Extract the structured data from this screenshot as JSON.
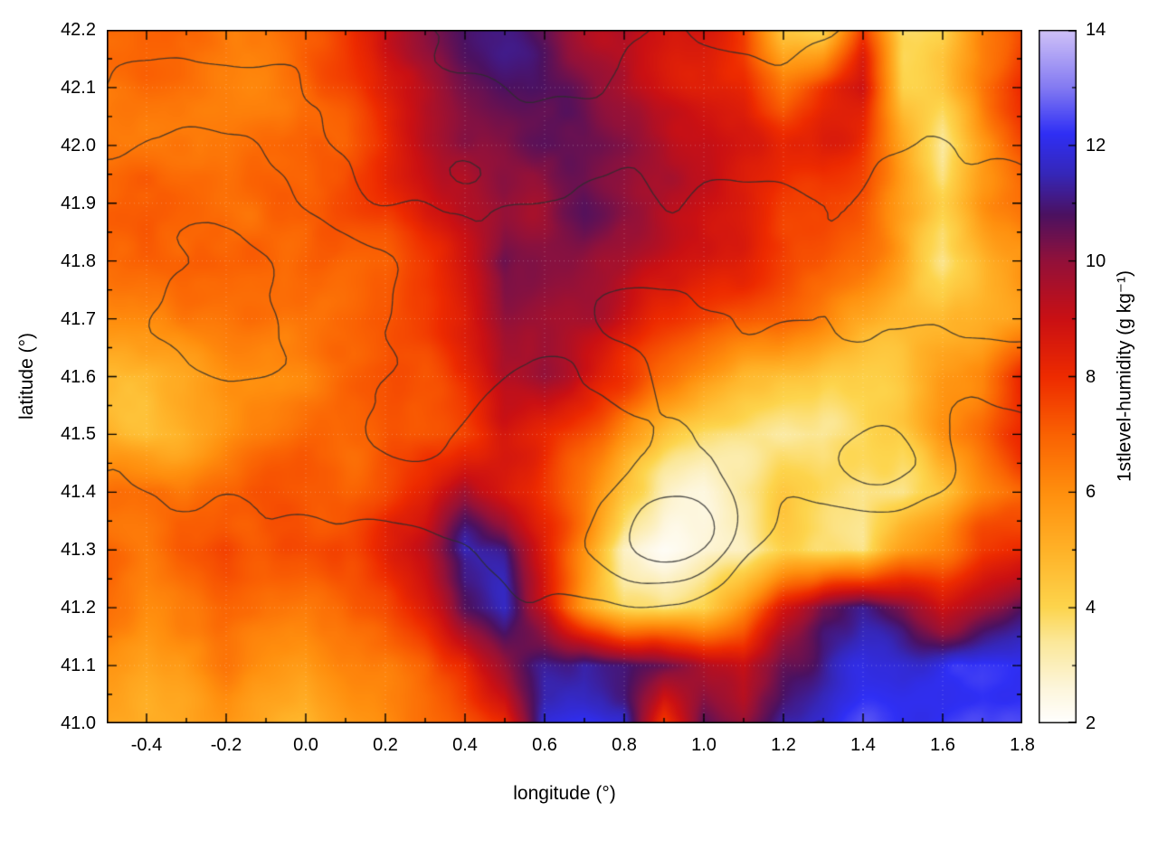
{
  "figure": {
    "background": "#ffffff"
  },
  "chart_data": {
    "type": "heatmap",
    "title": "",
    "xlabel": "longitude (°)",
    "ylabel": "latitude (°)",
    "cblabel": "1stlevel-humidity (g kg⁻¹)",
    "x_range": [
      -0.5,
      1.8
    ],
    "y_range": [
      41.0,
      42.2
    ],
    "c_range": [
      2,
      14
    ],
    "grid_on": true,
    "legend_position": "colorbar-right",
    "x_tick_values": [
      -0.4,
      -0.2,
      0.0,
      0.2,
      0.4,
      0.6,
      0.8,
      1.0,
      1.2,
      1.4,
      1.6,
      1.8
    ],
    "x_tick_labels": [
      "-0.4",
      "-0.2",
      "0.0",
      "0.2",
      "0.4",
      "0.6",
      "0.8",
      "1.0",
      "1.2",
      "1.4",
      "1.6",
      "1.8"
    ],
    "y_tick_values": [
      41.0,
      41.1,
      41.2,
      41.3,
      41.4,
      41.5,
      41.6,
      41.7,
      41.8,
      41.9,
      42.0,
      42.1,
      42.2
    ],
    "y_tick_labels": [
      "41.0",
      "41.1",
      "41.2",
      "41.3",
      "41.4",
      "41.5",
      "41.6",
      "41.7",
      "41.8",
      "41.9",
      "42.0",
      "42.1",
      "42.2"
    ],
    "cb_tick_values": [
      2,
      4,
      6,
      8,
      10,
      12,
      14
    ],
    "cb_tick_labels": [
      "2",
      "4",
      "6",
      "8",
      "10",
      "12",
      "14"
    ],
    "grid_lon": [
      -0.5,
      -0.4,
      -0.3,
      -0.2,
      -0.1,
      0.0,
      0.1,
      0.2,
      0.3,
      0.4,
      0.5,
      0.6,
      0.7,
      0.8,
      0.9,
      1.0,
      1.1,
      1.2,
      1.3,
      1.4,
      1.5,
      1.6,
      1.7,
      1.8
    ],
    "grid_lat": [
      42.2,
      42.1,
      42.0,
      41.9,
      41.8,
      41.7,
      41.6,
      41.5,
      41.4,
      41.3,
      41.2,
      41.1,
      41.0
    ],
    "row_order": "north_to_south",
    "humidity_g_per_kg": [
      [
        7,
        7,
        6.8,
        7,
        7.2,
        7.5,
        8,
        8.8,
        9.3,
        9.8,
        10,
        10,
        9.8,
        10.2,
        9.5,
        9,
        8,
        5,
        4.5,
        8,
        4,
        4.5,
        6.5,
        7.5
      ],
      [
        6.8,
        7,
        7,
        7.2,
        7,
        7.2,
        7.8,
        8.6,
        9.2,
        9.6,
        10.2,
        10.5,
        10.4,
        10,
        9.4,
        8.8,
        8.2,
        6.5,
        8,
        9,
        4.5,
        5,
        7,
        8
      ],
      [
        7,
        6.8,
        7,
        7,
        7.2,
        7.4,
        7.6,
        8.4,
        9.4,
        9.6,
        9.8,
        10.4,
        10.6,
        10.4,
        10,
        9.2,
        8.6,
        8,
        8.4,
        8,
        6,
        4,
        6,
        7.5
      ],
      [
        6.6,
        7,
        7,
        6.8,
        7,
        7.2,
        7.5,
        8,
        8.8,
        9.4,
        10,
        9.8,
        10.4,
        10,
        9.6,
        9,
        8.6,
        8,
        8,
        7.5,
        6,
        5,
        6.5,
        7
      ],
      [
        6.6,
        6.8,
        7,
        7,
        7,
        7,
        7.2,
        7.6,
        8.4,
        9.4,
        10.8,
        10,
        9.6,
        9,
        8.6,
        8.4,
        8,
        7.6,
        7.5,
        7,
        6,
        4.5,
        5.5,
        6.5
      ],
      [
        5.6,
        6,
        6.4,
        6.6,
        6.6,
        6.8,
        7,
        7.4,
        8,
        9,
        10.4,
        10,
        9.4,
        8.6,
        8,
        7.6,
        7.4,
        7,
        6.6,
        6,
        5.5,
        5,
        5.5,
        6
      ],
      [
        5,
        5,
        5.4,
        5.8,
        6,
        6.4,
        6.8,
        7,
        7.6,
        8.6,
        10,
        10.4,
        9,
        8,
        7,
        6,
        5,
        4.6,
        4.2,
        4.5,
        5,
        6,
        6.5,
        8.5
      ],
      [
        5.4,
        5,
        5.4,
        6,
        6.4,
        6.6,
        6.8,
        7,
        7.4,
        8,
        9,
        8.6,
        8,
        6.6,
        5,
        4,
        3.6,
        3.2,
        3,
        3.4,
        4,
        6,
        7,
        8.4
      ],
      [
        7,
        7.4,
        7,
        7.4,
        7.5,
        7,
        7,
        7.5,
        8.4,
        10,
        9,
        8,
        7,
        5,
        3.6,
        3,
        3.4,
        4,
        3.2,
        2.8,
        3.2,
        4.5,
        6,
        7
      ],
      [
        7.4,
        7,
        7.5,
        8,
        7.5,
        7.5,
        7.5,
        8,
        9,
        11.4,
        11,
        8.5,
        6,
        3,
        2.6,
        2.8,
        3,
        4,
        3.5,
        3,
        5,
        6,
        7.5,
        8
      ],
      [
        7,
        6.6,
        7,
        7,
        6.6,
        6.5,
        7,
        7.5,
        8.5,
        10.5,
        11.5,
        9,
        6,
        4,
        3.5,
        4,
        6,
        9,
        11,
        11.5,
        10.5,
        9,
        10,
        11
      ],
      [
        6.5,
        6,
        6.5,
        7,
        6.5,
        6,
        6.5,
        7,
        7.5,
        8.5,
        10,
        11.5,
        12,
        11.5,
        11,
        10,
        9,
        11,
        12,
        12.5,
        12.5,
        12.5,
        13,
        13
      ],
      [
        6,
        5.5,
        6,
        6.5,
        6,
        5.5,
        6,
        6.5,
        7,
        7.5,
        8,
        12,
        12.5,
        12,
        8,
        11,
        10,
        12,
        12.5,
        13,
        13,
        13.2,
        13.5,
        13.5
      ]
    ],
    "colormap": [
      [
        2,
        "#ffffff"
      ],
      [
        2.6,
        "#fdf6dc"
      ],
      [
        3.4,
        "#fbe89a"
      ],
      [
        4,
        "#fdd54d"
      ],
      [
        5,
        "#ffb228"
      ],
      [
        6,
        "#ff8f0e"
      ],
      [
        7,
        "#fa6203"
      ],
      [
        8,
        "#ee2b00"
      ],
      [
        9,
        "#ca1014"
      ],
      [
        10,
        "#93113a"
      ],
      [
        10.8,
        "#4c1161"
      ],
      [
        11.5,
        "#3627b8"
      ],
      [
        12.2,
        "#2f2ff5"
      ],
      [
        13,
        "#837af2"
      ],
      [
        14,
        "#d0c2f8"
      ]
    ],
    "contours": {
      "color": "#2d2d2d",
      "levels": [
        0.28,
        0.4,
        0.52,
        0.64,
        0.76,
        0.88
      ]
    }
  }
}
